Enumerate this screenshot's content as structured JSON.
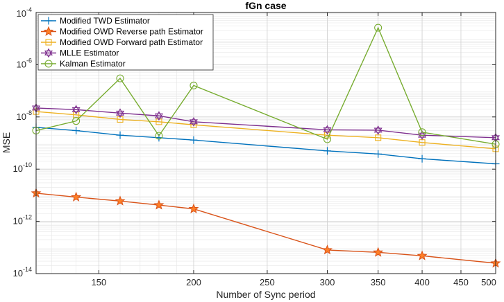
{
  "chart_data": {
    "type": "line",
    "title": "fGn case",
    "xlabel": "Number of Sync period",
    "ylabel": "MSE",
    "xscale": "log",
    "yscale": "log",
    "xlim": [
      124,
      500
    ],
    "ylim": [
      1e-14,
      0.0001
    ],
    "grid": true,
    "minor_grid": true,
    "legend_position": "top-left",
    "x_ticks": [
      {
        "value": 150,
        "label": "150"
      },
      {
        "value": 200,
        "label": "200"
      },
      {
        "value": 250,
        "label": "250"
      },
      {
        "value": 300,
        "label": "300"
      },
      {
        "value": 350,
        "label": "350"
      },
      {
        "value": 400,
        "label": "400"
      },
      {
        "value": 450,
        "label": "450"
      },
      {
        "value": 500,
        "label": "500"
      }
    ],
    "y_ticks": [
      {
        "value": 1e-14,
        "base": "10",
        "exp": "-14"
      },
      {
        "value": 1e-12,
        "base": "10",
        "exp": "-12"
      },
      {
        "value": 1e-10,
        "base": "10",
        "exp": "-10"
      },
      {
        "value": 1e-08,
        "base": "10",
        "exp": "-8"
      },
      {
        "value": 1e-06,
        "base": "10",
        "exp": "-6"
      },
      {
        "value": 0.0001,
        "base": "10",
        "exp": "-4"
      }
    ],
    "series": [
      {
        "name": "Modified TWD Estimator",
        "color": "#0072BD",
        "marker": "plus",
        "x": [
          124,
          140,
          160,
          180,
          200,
          300,
          350,
          400,
          500
        ],
        "values": [
          4e-09,
          3e-09,
          2e-09,
          1.6e-09,
          1.3e-09,
          5e-10,
          3.8e-10,
          2.5e-10,
          1.6e-10
        ]
      },
      {
        "name": "Modified OWD Reverse path Estimator",
        "color": "#D95319",
        "marker_fill": "#FF7F27",
        "marker": "star",
        "x": [
          124,
          140,
          160,
          180,
          200,
          300,
          350,
          400,
          500
        ],
        "values": [
          1.2e-11,
          8.5e-12,
          6e-12,
          4.2e-12,
          3e-12,
          8e-14,
          6.5e-14,
          4.8e-14,
          2.5e-14
        ]
      },
      {
        "name": "Modified OWD Forward path Estimator",
        "color": "#EDB120",
        "marker": "square",
        "x": [
          124,
          140,
          160,
          180,
          200,
          300,
          350,
          400,
          500
        ],
        "values": [
          1.6e-08,
          1.2e-08,
          8e-09,
          6.5e-09,
          5e-09,
          2e-09,
          1.6e-09,
          1.05e-09,
          6e-10
        ]
      },
      {
        "name": "MLLE Estimator",
        "color": "#7E2F8E",
        "marker": "hexagram",
        "x": [
          124,
          140,
          160,
          180,
          200,
          300,
          350,
          400,
          500
        ],
        "values": [
          2.2e-08,
          1.9e-08,
          1.4e-08,
          1.1e-08,
          6.5e-09,
          3.2e-09,
          3.1e-09,
          2e-09,
          1.6e-09
        ]
      },
      {
        "name": "Kalman Estimator",
        "color": "#77AC30",
        "marker": "circle",
        "x": [
          124,
          140,
          160,
          180,
          200,
          300,
          350,
          400,
          500
        ],
        "values": [
          3e-09,
          7e-09,
          3e-07,
          1.9e-09,
          1.6e-07,
          1.4e-09,
          2.6e-05,
          2.6e-09,
          9e-10
        ]
      }
    ]
  }
}
